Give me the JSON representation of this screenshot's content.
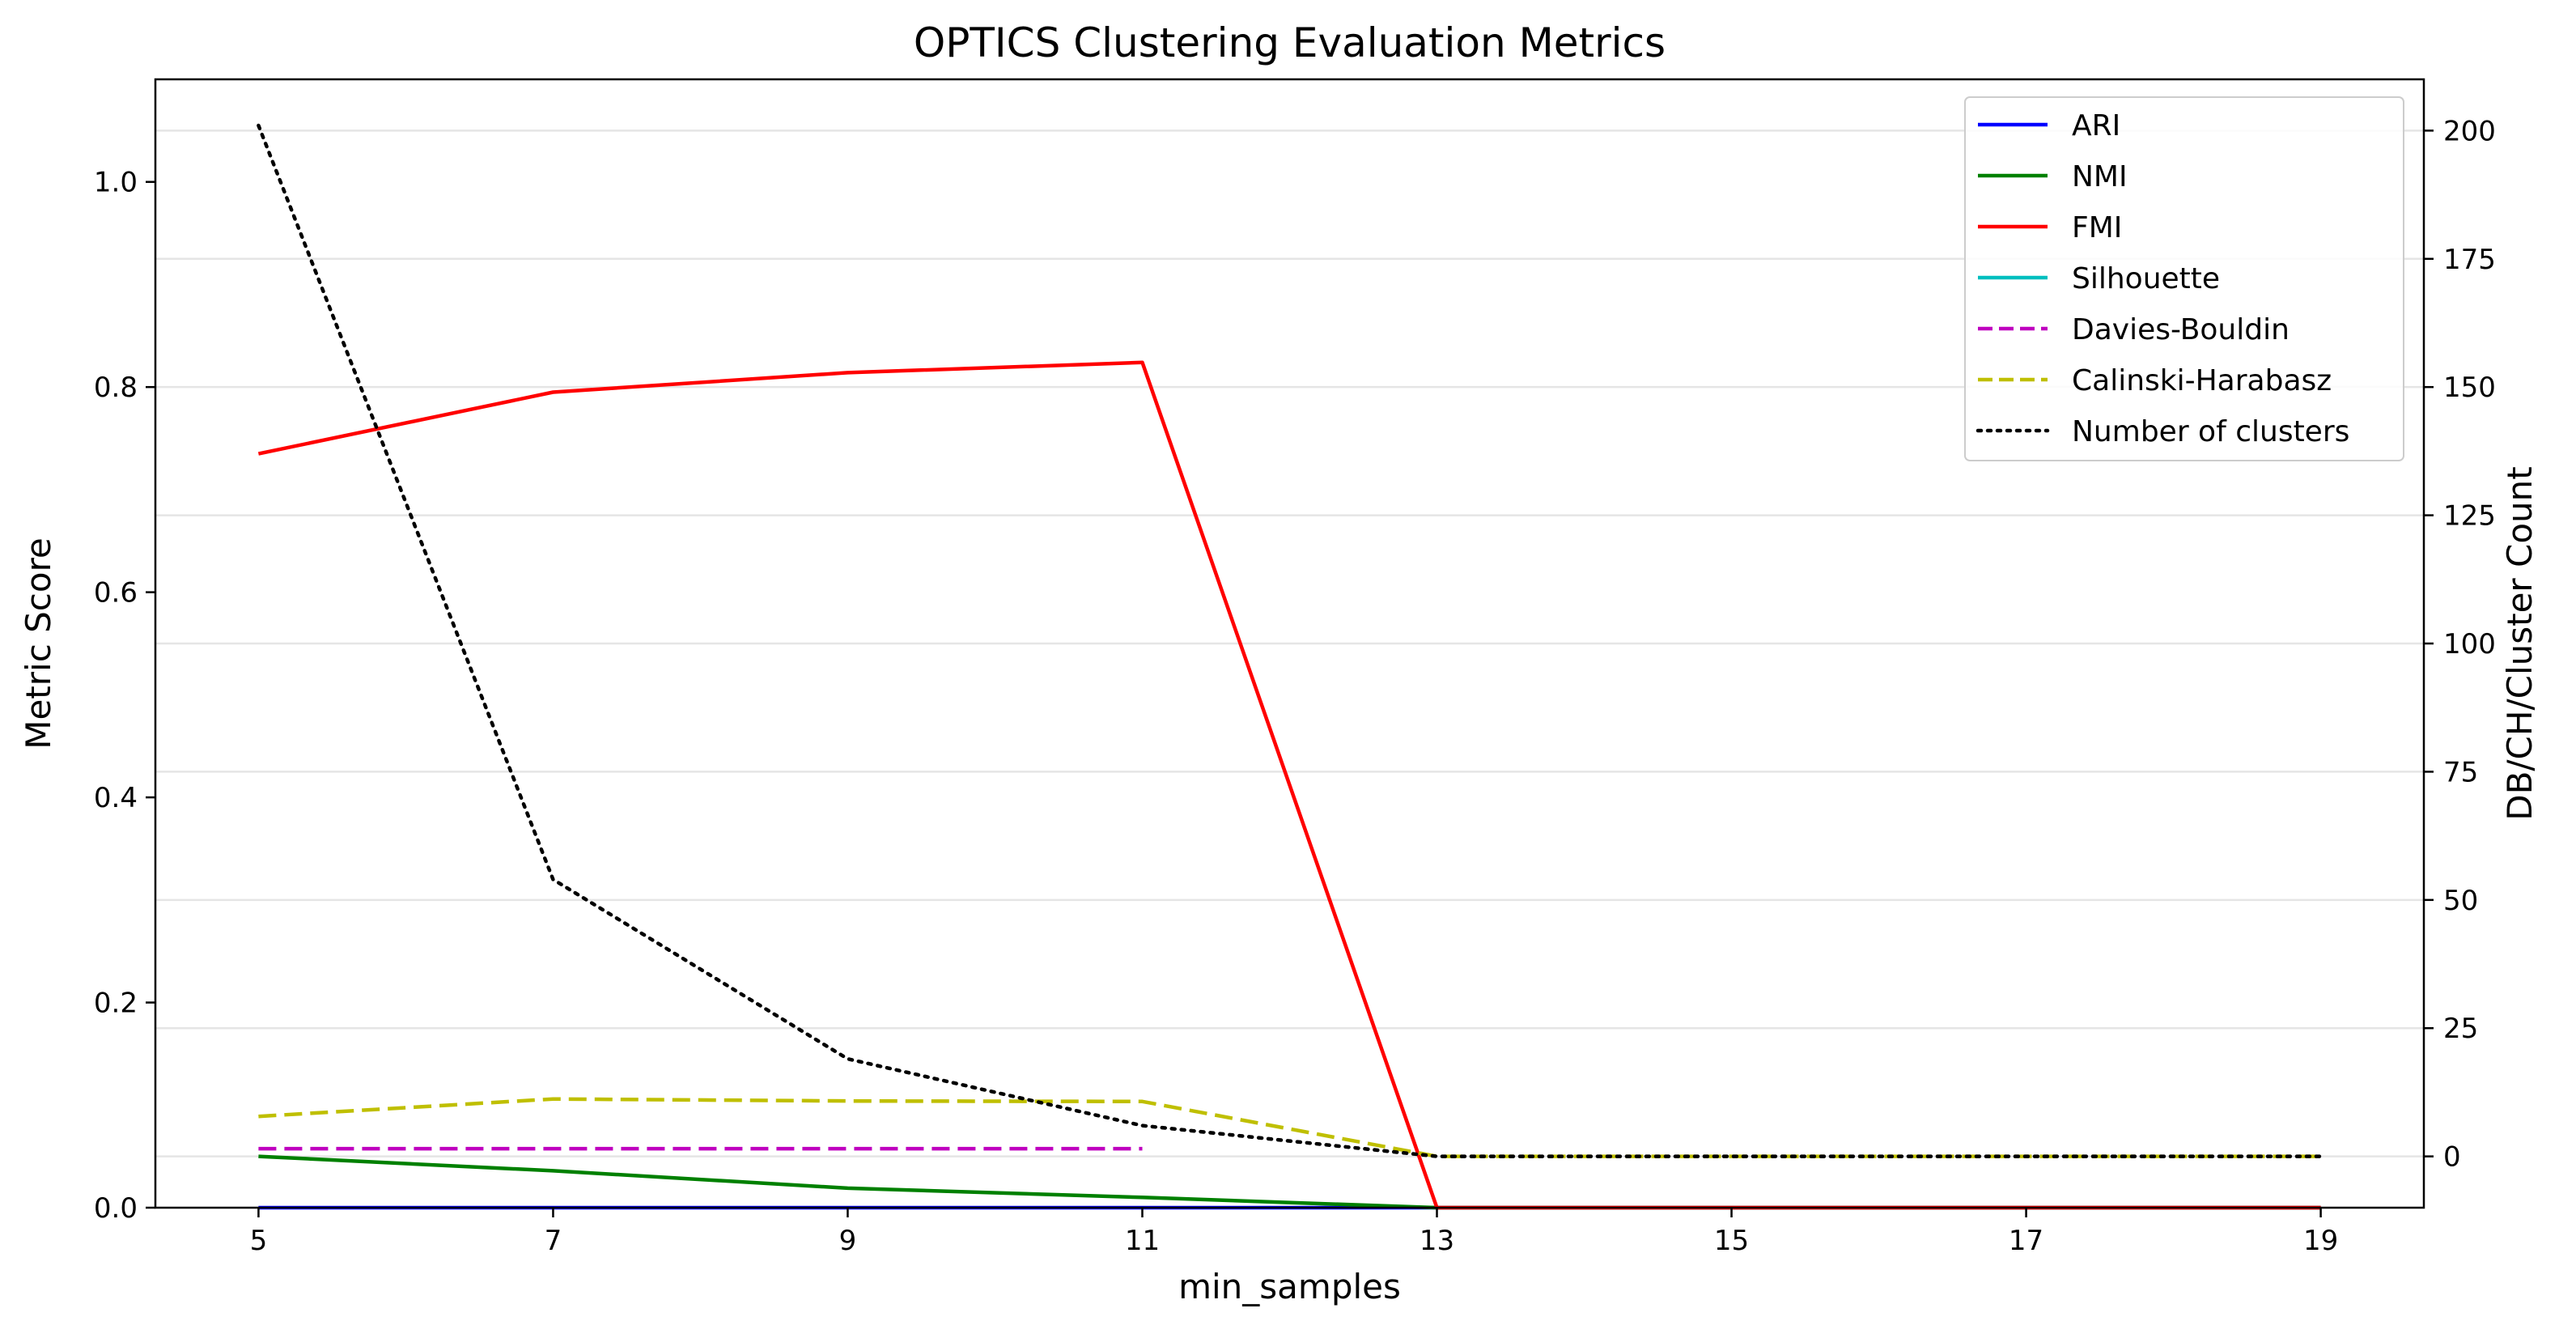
{
  "chart_data": {
    "type": "line",
    "title": "OPTICS Clustering Evaluation Metrics",
    "xlabel": "min_samples",
    "ylabel_left": "Metric Score",
    "ylabel_right": "DB/CH/Cluster Count",
    "x_ticks": [
      "5",
      "7",
      "9",
      "11",
      "13",
      "15",
      "17",
      "19"
    ],
    "y_left_ticks": [
      "0.0",
      "0.2",
      "0.4",
      "0.6",
      "0.8",
      "1.0"
    ],
    "y_right_ticks": [
      "0",
      "25",
      "50",
      "75",
      "100",
      "125",
      "150",
      "175",
      "200"
    ],
    "xlim": [
      4.3,
      19.7
    ],
    "ylim_left": [
      0,
      1.1
    ],
    "ylim_right": [
      -10,
      210
    ],
    "grid": "horizontal (right axis)",
    "legend_position": "upper right",
    "series": [
      {
        "name": "ARI",
        "axis": "left",
        "color": "#0000ff",
        "style": "solid",
        "x": [
          5,
          7,
          9,
          11,
          13,
          15,
          17,
          19
        ],
        "y": [
          0.0,
          0.0,
          0.0,
          0.0,
          0.0,
          0.0,
          0.0,
          0.0
        ]
      },
      {
        "name": "NMI",
        "axis": "left",
        "color": "#008000",
        "style": "solid",
        "x": [
          5,
          7,
          9,
          11,
          13,
          15,
          17,
          19
        ],
        "y": [
          0.05,
          0.036,
          0.019,
          0.01,
          0.0,
          0.0,
          0.0,
          0.0
        ]
      },
      {
        "name": "FMI",
        "axis": "left",
        "color": "#ff0000",
        "style": "solid",
        "x": [
          5,
          7,
          9,
          11,
          13,
          15,
          17,
          19
        ],
        "y": [
          0.735,
          0.795,
          0.814,
          0.824,
          0.0,
          0.0,
          0.0,
          0.0
        ]
      },
      {
        "name": "Silhouette",
        "axis": "left",
        "color": "#00bfbf",
        "style": "solid",
        "x": [],
        "y": []
      },
      {
        "name": "Davies-Bouldin",
        "axis": "right",
        "color": "#bf00bf",
        "style": "dashed",
        "x": [
          5,
          7,
          9,
          11
        ],
        "y": [
          1.5,
          1.5,
          1.5,
          1.5
        ]
      },
      {
        "name": "Calinski-Harabasz",
        "axis": "right",
        "color": "#bfbf00",
        "style": "dashed",
        "x": [
          5,
          7,
          9,
          11,
          13,
          15,
          17,
          19
        ],
        "y": [
          7.8,
          11.2,
          10.8,
          10.7,
          0.0,
          0.0,
          0.0,
          0.0
        ]
      },
      {
        "name": "Number of clusters",
        "axis": "right",
        "color": "#000000",
        "style": "dotted",
        "x": [
          5,
          7,
          9,
          11,
          13,
          15,
          17,
          19
        ],
        "y": [
          201,
          54,
          19,
          6,
          0,
          0,
          0,
          0
        ]
      }
    ]
  }
}
